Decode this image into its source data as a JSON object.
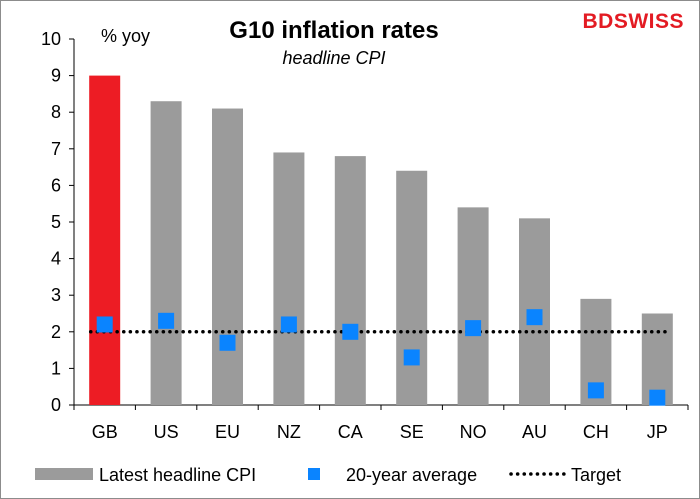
{
  "brand": {
    "logo_text": "BDSWISS",
    "logo_color": "#e31b23"
  },
  "chart_data": {
    "type": "bar",
    "title": "G10 inflation rates",
    "subtitle": "headline CPI",
    "ylabel": "% yoy",
    "xlabel": "",
    "ylim": [
      0,
      10
    ],
    "yticks": [
      0,
      1,
      2,
      3,
      4,
      5,
      6,
      7,
      8,
      9,
      10
    ],
    "categories": [
      "GB",
      "US",
      "EU",
      "NZ",
      "CA",
      "SE",
      "NO",
      "AU",
      "CH",
      "JP"
    ],
    "series": [
      {
        "name": "Latest headline CPI",
        "kind": "bar",
        "color": "#9b9b9b",
        "highlight": {
          "category": "GB",
          "color": "#ed1c24"
        },
        "values": [
          9.0,
          8.3,
          8.1,
          6.9,
          6.8,
          6.4,
          5.4,
          5.1,
          2.9,
          2.5
        ]
      },
      {
        "name": "20-year average",
        "kind": "marker",
        "color": "#0a84ff",
        "values": [
          2.2,
          2.3,
          1.7,
          2.2,
          2.0,
          1.3,
          2.1,
          2.4,
          0.4,
          0.2
        ]
      },
      {
        "name": "Target",
        "kind": "dotted-line",
        "color": "#000000",
        "values": [
          2,
          2,
          2,
          2,
          2,
          2,
          2,
          2,
          2,
          2
        ]
      }
    ],
    "grid": false,
    "legend_position": "bottom"
  }
}
